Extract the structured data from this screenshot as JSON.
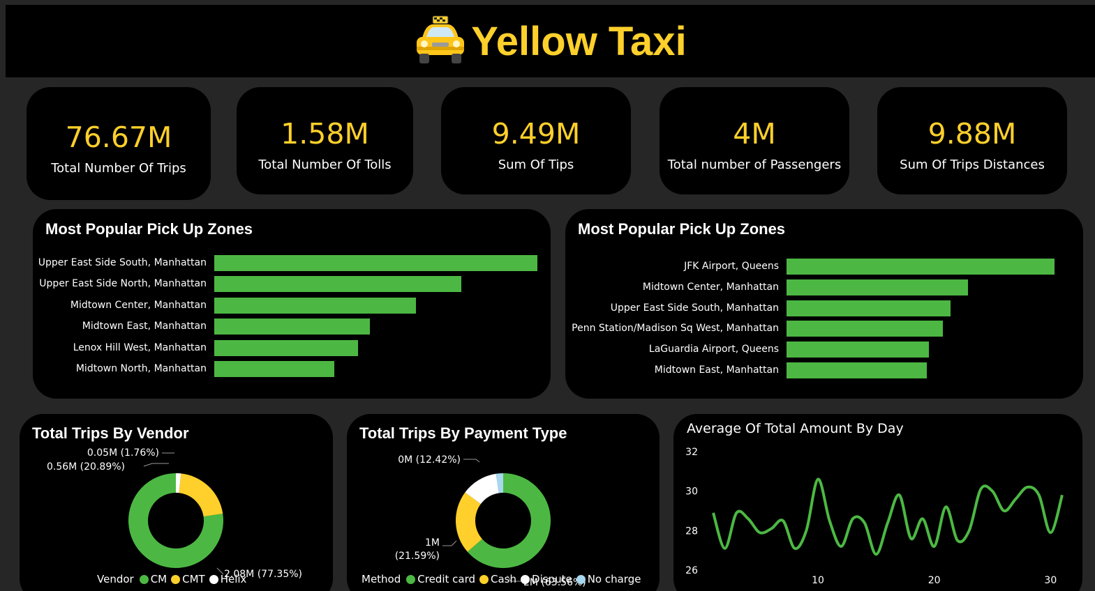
{
  "header": {
    "title": "Yellow Taxi",
    "icon": "taxi-icon"
  },
  "colors": {
    "accent": "#FFD02B",
    "green": "#4CB843",
    "panel": "#000000",
    "background": "#262626",
    "light_blue": "#A8D8F0"
  },
  "kpis": [
    {
      "value": "76.67M",
      "label": "Total Number Of Trips"
    },
    {
      "value": "1.58M",
      "label": "Total Number Of Tolls"
    },
    {
      "value": "9.49M",
      "label": "Sum Of Tips"
    },
    {
      "value": "4M",
      "label": "Total number of Passengers"
    },
    {
      "value": "9.88M",
      "label": "Sum Of Trips Distances"
    }
  ],
  "chart_data": [
    {
      "type": "bar",
      "orientation": "horizontal",
      "title": "Most Popular Pick Up Zones",
      "categories": [
        "Upper East Side South, Manhattan",
        "Upper East Side North, Manhattan",
        "Midtown Center, Manhattan",
        "Midtown East, Manhattan",
        "Lenox Hill West, Manhattan",
        "Midtown North, Manhattan"
      ],
      "values": [
        100,
        76.5,
        62.5,
        48.2,
        44.5,
        37.2
      ]
    },
    {
      "type": "bar",
      "orientation": "horizontal",
      "title": "Most Popular Pick Up Zones",
      "categories": [
        "JFK Airport, Queens",
        "Midtown Center, Manhattan",
        "Upper East Side South, Manhattan",
        "Penn Station/Madison Sq West, Manhattan",
        "LaGuardia Airport, Queens",
        "Midtown East, Manhattan"
      ],
      "values": [
        100,
        67.7,
        61.2,
        58.3,
        53.1,
        52.3
      ]
    },
    {
      "type": "pie",
      "donut": true,
      "title": "Total Trips By Vendor",
      "legend_title": "Vendor",
      "slices": [
        {
          "name": "CM",
          "value": 77.35,
          "label": "2.08M (77.35%)",
          "color": "#4CB843"
        },
        {
          "name": "CMT",
          "value": 20.89,
          "label": "0.56M (20.89%)",
          "color": "#FFD02B"
        },
        {
          "name": "Helix",
          "value": 1.76,
          "label": "0.05M (1.76%)",
          "color": "#FFFFFF"
        }
      ]
    },
    {
      "type": "pie",
      "donut": true,
      "title": "Total Trips By Payment Type",
      "legend_title": "Method",
      "slices": [
        {
          "name": "Credit card",
          "value": 63.56,
          "label": "2M (63.56%)",
          "color": "#4CB843"
        },
        {
          "name": "Cash",
          "value": 21.59,
          "label": "1M (21.59%)",
          "label_line1": "1M",
          "label_line2": "(21.59%)",
          "color": "#FFD02B"
        },
        {
          "name": "Dispute",
          "value": 12.42,
          "label": "0M (12.42%)",
          "color": "#FFFFFF"
        },
        {
          "name": "No charge",
          "value": 2.43,
          "label": "",
          "color": "#A8D8F0"
        }
      ]
    },
    {
      "type": "line",
      "title": "Average Of Total Amount By Day",
      "x": [
        1,
        2,
        3,
        4,
        5,
        6,
        7,
        8,
        9,
        10,
        11,
        12,
        13,
        14,
        15,
        16,
        17,
        18,
        19,
        20,
        21,
        22,
        23,
        24,
        25,
        26,
        27,
        28,
        29,
        30,
        31
      ],
      "values": [
        28.9,
        27.1,
        28.9,
        28.6,
        27.9,
        28.1,
        28.5,
        27.1,
        28.0,
        30.6,
        28.5,
        27.2,
        28.6,
        28.4,
        26.8,
        28.4,
        29.8,
        27.6,
        28.6,
        27.2,
        29.2,
        27.5,
        28.0,
        30.1,
        30.0,
        29.0,
        29.6,
        30.2,
        29.8,
        27.9,
        29.8
      ],
      "xticks": [
        10,
        20,
        30
      ],
      "yticks": [
        26,
        28,
        30,
        32
      ],
      "ylim": [
        26,
        32
      ],
      "xlim": [
        1,
        31
      ],
      "xlabel": "",
      "ylabel": ""
    }
  ]
}
